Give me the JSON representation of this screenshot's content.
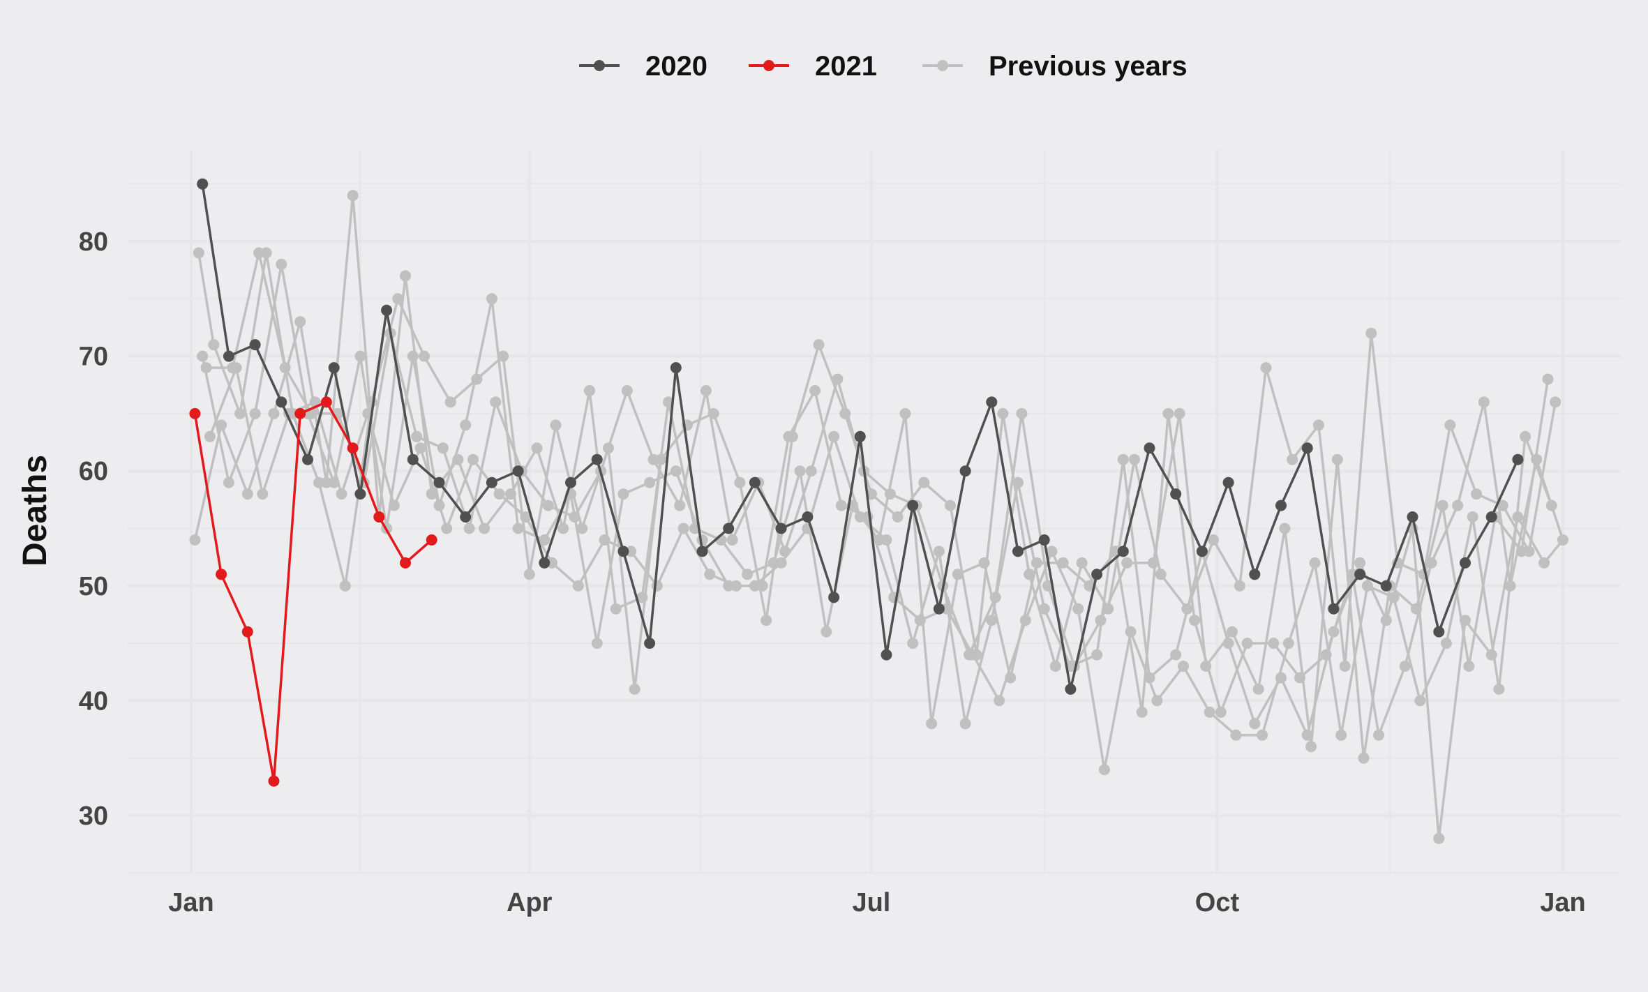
{
  "chart_data": {
    "type": "line",
    "ylabel": "Deaths",
    "xlabel": "",
    "xlim": [
      1,
      366
    ],
    "ylim": [
      25.5,
      88.5
    ],
    "x_ticks": [
      {
        "day": 1,
        "label": "Jan"
      },
      {
        "day": 91,
        "label": "Apr"
      },
      {
        "day": 182,
        "label": "Jul"
      },
      {
        "day": 274,
        "label": "Oct"
      },
      {
        "day": 366,
        "label": "Jan"
      }
    ],
    "y_ticks": [
      30,
      40,
      50,
      60,
      70,
      80
    ],
    "legend": {
      "position": "top",
      "entries": [
        "2020",
        "2021",
        "Previous years"
      ]
    },
    "colors": {
      "2020": "#505050",
      "2021": "#e31a1c",
      "previous": "#c0c0c0",
      "background": "#edecee",
      "grid": "#e6e5e7"
    },
    "series": [
      {
        "name": "Previous years",
        "color": "#c0c0c0",
        "points": [
          [
            3,
            79
          ],
          [
            7,
            71
          ],
          [
            14,
            65
          ],
          [
            21,
            79
          ],
          [
            28,
            65
          ],
          [
            35,
            59
          ],
          [
            42,
            50
          ],
          [
            49,
            66
          ],
          [
            56,
            75
          ],
          [
            63,
            70
          ],
          [
            70,
            66
          ],
          [
            77,
            68
          ],
          [
            84,
            70
          ],
          [
            91,
            51
          ],
          [
            98,
            64
          ],
          [
            105,
            55
          ],
          [
            112,
            62
          ],
          [
            119,
            41
          ],
          [
            126,
            61
          ],
          [
            133,
            64
          ],
          [
            140,
            65
          ],
          [
            147,
            59
          ],
          [
            154,
            47
          ],
          [
            161,
            63
          ],
          [
            168,
            71
          ],
          [
            175,
            65
          ],
          [
            182,
            58
          ],
          [
            189,
            56
          ],
          [
            196,
            59
          ],
          [
            203,
            57
          ],
          [
            210,
            44
          ],
          [
            217,
            65
          ],
          [
            224,
            51
          ],
          [
            231,
            43
          ],
          [
            238,
            52
          ],
          [
            245,
            48
          ],
          [
            252,
            61
          ],
          [
            259,
            51
          ],
          [
            266,
            48
          ],
          [
            273,
            54
          ],
          [
            280,
            50
          ],
          [
            287,
            69
          ],
          [
            294,
            61
          ],
          [
            301,
            64
          ],
          [
            308,
            43
          ],
          [
            315,
            72
          ],
          [
            322,
            52
          ],
          [
            329,
            51
          ],
          [
            336,
            64
          ],
          [
            343,
            58
          ],
          [
            350,
            57
          ],
          [
            357,
            53
          ],
          [
            364,
            66
          ]
        ]
      },
      {
        "name": "Previous years",
        "color": "#c0c0c0",
        "points": [
          [
            5,
            69
          ],
          [
            12,
            69
          ],
          [
            19,
            79
          ],
          [
            26,
            69
          ],
          [
            33,
            65
          ],
          [
            40,
            65
          ],
          [
            47,
            59
          ],
          [
            54,
            72
          ],
          [
            61,
            63
          ],
          [
            68,
            62
          ],
          [
            75,
            55
          ],
          [
            82,
            66
          ],
          [
            89,
            60
          ],
          [
            96,
            57
          ],
          [
            103,
            56
          ],
          [
            110,
            60
          ],
          [
            117,
            67
          ],
          [
            124,
            61
          ],
          [
            131,
            57
          ],
          [
            138,
            67
          ],
          [
            145,
            54
          ],
          [
            152,
            59
          ],
          [
            159,
            53
          ],
          [
            166,
            60
          ],
          [
            173,
            68
          ],
          [
            180,
            60
          ],
          [
            187,
            58
          ],
          [
            194,
            57
          ],
          [
            201,
            50
          ],
          [
            208,
            44
          ],
          [
            215,
            49
          ],
          [
            222,
            65
          ],
          [
            229,
            50
          ],
          [
            236,
            43
          ],
          [
            243,
            47
          ],
          [
            250,
            52
          ],
          [
            257,
            52
          ],
          [
            264,
            65
          ],
          [
            271,
            43
          ],
          [
            278,
            46
          ],
          [
            285,
            41
          ],
          [
            292,
            55
          ],
          [
            299,
            36
          ],
          [
            306,
            61
          ],
          [
            313,
            35
          ],
          [
            320,
            50
          ],
          [
            327,
            48
          ],
          [
            334,
            57
          ],
          [
            341,
            43
          ],
          [
            348,
            56
          ],
          [
            355,
            53
          ],
          [
            362,
            68
          ]
        ]
      },
      {
        "name": "Previous years",
        "color": "#c0c0c0",
        "points": [
          [
            2,
            54
          ],
          [
            9,
            64
          ],
          [
            16,
            58
          ],
          [
            23,
            65
          ],
          [
            30,
            73
          ],
          [
            37,
            59
          ],
          [
            44,
            84
          ],
          [
            51,
            56
          ],
          [
            58,
            77
          ],
          [
            65,
            58
          ],
          [
            72,
            61
          ],
          [
            79,
            55
          ],
          [
            86,
            58
          ],
          [
            93,
            62
          ],
          [
            100,
            55
          ],
          [
            107,
            67
          ],
          [
            114,
            48
          ],
          [
            121,
            49
          ],
          [
            128,
            66
          ],
          [
            135,
            55
          ],
          [
            142,
            54
          ],
          [
            149,
            51
          ],
          [
            156,
            52
          ],
          [
            163,
            60
          ],
          [
            170,
            46
          ],
          [
            177,
            57
          ],
          [
            184,
            54
          ],
          [
            191,
            65
          ],
          [
            198,
            38
          ],
          [
            205,
            51
          ],
          [
            212,
            52
          ],
          [
            219,
            42
          ],
          [
            226,
            52
          ],
          [
            233,
            52
          ],
          [
            240,
            50
          ],
          [
            247,
            53
          ],
          [
            254,
            39
          ],
          [
            261,
            65
          ],
          [
            268,
            47
          ],
          [
            275,
            39
          ],
          [
            282,
            45
          ],
          [
            289,
            45
          ],
          [
            296,
            42
          ],
          [
            303,
            44
          ],
          [
            310,
            51
          ],
          [
            317,
            37
          ],
          [
            324,
            43
          ],
          [
            331,
            52
          ],
          [
            338,
            57
          ],
          [
            345,
            66
          ],
          [
            352,
            50
          ],
          [
            359,
            61
          ],
          [
            366,
            54
          ]
        ]
      },
      {
        "name": "Previous years",
        "color": "#c0c0c0",
        "points": [
          [
            4,
            70
          ],
          [
            11,
            59
          ],
          [
            18,
            65
          ],
          [
            25,
            78
          ],
          [
            32,
            65
          ],
          [
            39,
            59
          ],
          [
            46,
            70
          ],
          [
            53,
            55
          ],
          [
            60,
            70
          ],
          [
            67,
            57
          ],
          [
            74,
            64
          ],
          [
            81,
            75
          ],
          [
            88,
            55
          ],
          [
            95,
            54
          ],
          [
            102,
            58
          ],
          [
            109,
            45
          ],
          [
            116,
            58
          ],
          [
            123,
            59
          ],
          [
            130,
            60
          ],
          [
            137,
            54
          ],
          [
            144,
            50
          ],
          [
            151,
            50
          ],
          [
            158,
            52
          ],
          [
            165,
            55
          ],
          [
            172,
            63
          ],
          [
            179,
            56
          ],
          [
            186,
            54
          ],
          [
            193,
            45
          ],
          [
            200,
            53
          ],
          [
            207,
            38
          ],
          [
            214,
            47
          ],
          [
            221,
            59
          ],
          [
            228,
            48
          ],
          [
            235,
            43
          ],
          [
            242,
            44
          ],
          [
            249,
            61
          ],
          [
            256,
            42
          ],
          [
            263,
            44
          ],
          [
            270,
            53
          ],
          [
            277,
            45
          ],
          [
            284,
            38
          ],
          [
            291,
            42
          ],
          [
            298,
            37
          ],
          [
            305,
            46
          ],
          [
            312,
            52
          ],
          [
            319,
            47
          ],
          [
            326,
            55
          ],
          [
            333,
            28
          ],
          [
            340,
            47
          ],
          [
            347,
            44
          ],
          [
            354,
            56
          ],
          [
            361,
            52
          ],
          [
            366,
            54
          ]
        ]
      },
      {
        "name": "Previous years",
        "color": "#c0c0c0",
        "points": [
          [
            6,
            63
          ],
          [
            13,
            69
          ],
          [
            20,
            58
          ],
          [
            27,
            65
          ],
          [
            34,
            66
          ],
          [
            41,
            58
          ],
          [
            48,
            65
          ],
          [
            55,
            57
          ],
          [
            62,
            62
          ],
          [
            69,
            55
          ],
          [
            76,
            61
          ],
          [
            83,
            58
          ],
          [
            90,
            56
          ],
          [
            97,
            52
          ],
          [
            104,
            50
          ],
          [
            111,
            54
          ],
          [
            118,
            53
          ],
          [
            125,
            50
          ],
          [
            132,
            55
          ],
          [
            139,
            51
          ],
          [
            146,
            50
          ],
          [
            153,
            50
          ],
          [
            160,
            63
          ],
          [
            167,
            67
          ],
          [
            174,
            57
          ],
          [
            181,
            56
          ],
          [
            188,
            49
          ],
          [
            195,
            47
          ],
          [
            202,
            48
          ],
          [
            209,
            44
          ],
          [
            216,
            40
          ],
          [
            223,
            47
          ],
          [
            230,
            53
          ],
          [
            237,
            48
          ],
          [
            244,
            34
          ],
          [
            251,
            46
          ],
          [
            258,
            40
          ],
          [
            265,
            43
          ],
          [
            272,
            39
          ],
          [
            279,
            37
          ],
          [
            286,
            37
          ],
          [
            293,
            45
          ],
          [
            300,
            52
          ],
          [
            307,
            37
          ],
          [
            314,
            50
          ],
          [
            321,
            49
          ],
          [
            328,
            40
          ],
          [
            335,
            45
          ],
          [
            342,
            56
          ],
          [
            349,
            41
          ],
          [
            356,
            63
          ],
          [
            363,
            57
          ]
        ]
      },
      {
        "name": "2020",
        "color": "#505050",
        "points": [
          [
            4,
            85
          ],
          [
            11,
            70
          ],
          [
            18,
            71
          ],
          [
            25,
            66
          ],
          [
            32,
            61
          ],
          [
            39,
            69
          ],
          [
            46,
            58
          ],
          [
            53,
            74
          ],
          [
            60,
            61
          ],
          [
            67,
            59
          ],
          [
            74,
            56
          ],
          [
            81,
            59
          ],
          [
            88,
            60
          ],
          [
            95,
            52
          ],
          [
            102,
            59
          ],
          [
            109,
            61
          ],
          [
            116,
            53
          ],
          [
            123,
            45
          ],
          [
            130,
            69
          ],
          [
            137,
            53
          ],
          [
            144,
            55
          ],
          [
            151,
            59
          ],
          [
            158,
            55
          ],
          [
            165,
            56
          ],
          [
            172,
            49
          ],
          [
            179,
            63
          ],
          [
            186,
            44
          ],
          [
            193,
            57
          ],
          [
            200,
            48
          ],
          [
            207,
            60
          ],
          [
            214,
            66
          ],
          [
            221,
            53
          ],
          [
            228,
            54
          ],
          [
            235,
            41
          ],
          [
            242,
            51
          ],
          [
            249,
            53
          ],
          [
            256,
            62
          ],
          [
            263,
            58
          ],
          [
            270,
            53
          ],
          [
            277,
            59
          ],
          [
            284,
            51
          ],
          [
            291,
            57
          ],
          [
            298,
            62
          ],
          [
            305,
            48
          ],
          [
            312,
            51
          ],
          [
            319,
            50
          ],
          [
            326,
            56
          ],
          [
            333,
            46
          ],
          [
            340,
            52
          ],
          [
            347,
            56
          ],
          [
            354,
            61
          ]
        ]
      },
      {
        "name": "2021",
        "color": "#e31a1c",
        "points": [
          [
            2,
            65
          ],
          [
            9,
            51
          ],
          [
            16,
            46
          ],
          [
            23,
            33
          ],
          [
            30,
            65
          ],
          [
            37,
            66
          ],
          [
            44,
            62
          ],
          [
            51,
            56
          ],
          [
            58,
            52
          ],
          [
            65,
            54
          ]
        ]
      }
    ]
  }
}
